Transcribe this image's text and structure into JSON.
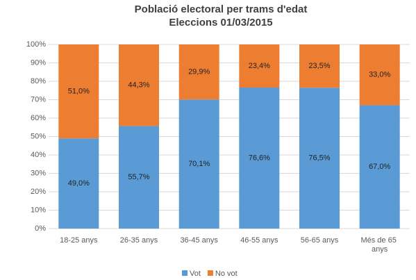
{
  "chart_data": {
    "type": "stacked_bar",
    "title": "Població electoral per trams d'edat",
    "subtitle": "Eleccions 01/03/2015",
    "categories": [
      "18-25 anys",
      "26-35 anys",
      "36-45 anys",
      "46-55 anys",
      "56-65 anys",
      "Més de 65 anys"
    ],
    "series": [
      {
        "name": "Vot",
        "color": "#5b9bd5",
        "values": [
          49.0,
          55.7,
          70.1,
          76.6,
          76.5,
          67.0
        ],
        "value_labels": [
          "49,0%",
          "55,7%",
          "70,1%",
          "76,6%",
          "76,5%",
          "67,0%"
        ]
      },
      {
        "name": "No vot",
        "color": "#ed7d31",
        "values": [
          51.0,
          44.3,
          29.9,
          23.4,
          23.5,
          33.0
        ],
        "value_labels": [
          "51,0%",
          "44,3%",
          "29,9%",
          "23,4%",
          "23,5%",
          "33,0%"
        ]
      }
    ],
    "ylim": [
      0,
      100
    ],
    "yticks": [
      {
        "value": 0,
        "label": "0%"
      },
      {
        "value": 10,
        "label": "10%"
      },
      {
        "value": 20,
        "label": "20%"
      },
      {
        "value": 30,
        "label": "30%"
      },
      {
        "value": 40,
        "label": "40%"
      },
      {
        "value": 50,
        "label": "50%"
      },
      {
        "value": 60,
        "label": "60%"
      },
      {
        "value": 70,
        "label": "70%"
      },
      {
        "value": 80,
        "label": "80%"
      },
      {
        "value": 90,
        "label": "90%"
      },
      {
        "value": 100,
        "label": "100%"
      }
    ],
    "grid": true,
    "legend": "bottom"
  }
}
